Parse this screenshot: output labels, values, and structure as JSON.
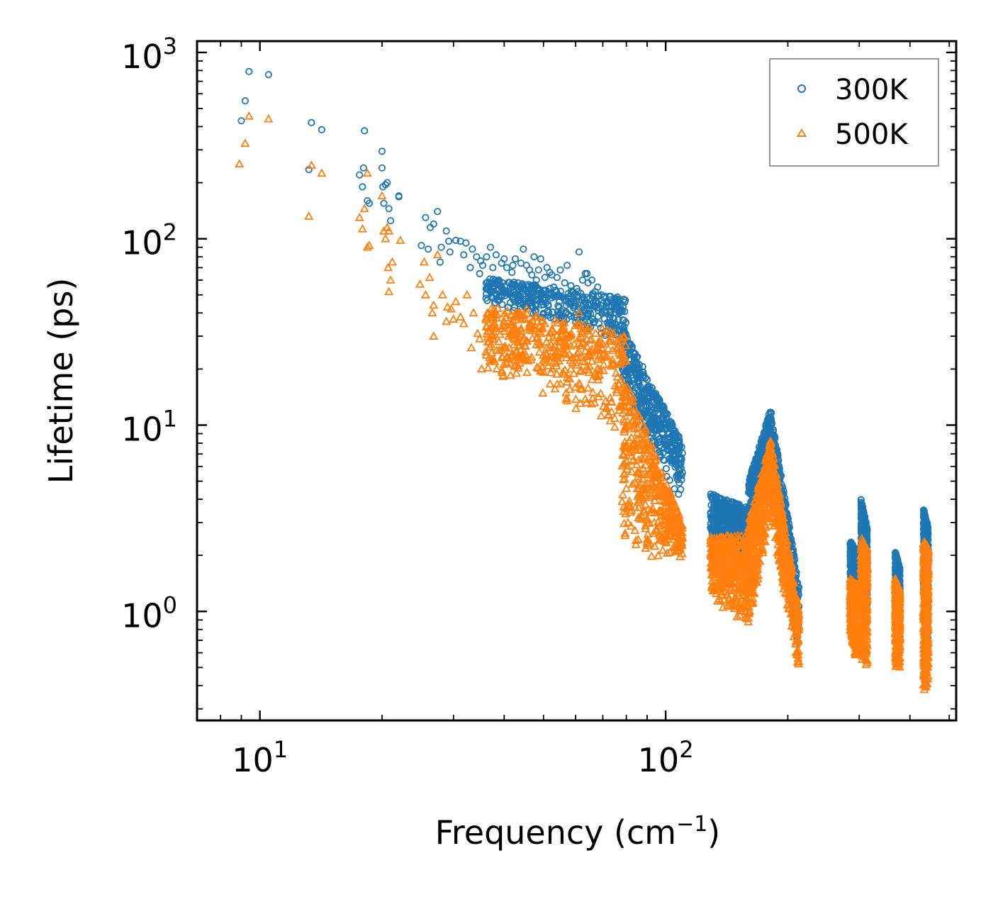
{
  "chart_data": {
    "type": "scatter",
    "title": "",
    "xlabel": "Frequency (cm",
    "xlabel_superscript": "−1",
    "xlabel_suffix": ")",
    "ylabel": "Lifetime (ps)",
    "xscale": "log",
    "yscale": "log",
    "xlim": [
      7,
      520
    ],
    "ylim": [
      0.26,
      1150
    ],
    "x_ticks": [
      {
        "value": 10,
        "base": "10",
        "exp": "1"
      },
      {
        "value": 100,
        "base": "10",
        "exp": "2"
      }
    ],
    "y_ticks": [
      {
        "value": 1,
        "base": "10",
        "exp": "0"
      },
      {
        "value": 10,
        "base": "10",
        "exp": "1"
      },
      {
        "value": 100,
        "base": "10",
        "exp": "2"
      },
      {
        "value": 1000,
        "base": "10",
        "exp": "3"
      }
    ],
    "grid": false,
    "legend_position": "top-right",
    "series": [
      {
        "name": "300K",
        "marker": "circle",
        "color": "#1f77b4",
        "points": [
          [
            9.0,
            430
          ],
          [
            9.2,
            550
          ],
          [
            9.4,
            790
          ],
          [
            10.5,
            760
          ],
          [
            13.2,
            235
          ],
          [
            13.4,
            420
          ],
          [
            14.2,
            385
          ],
          [
            17.6,
            220
          ],
          [
            17.9,
            190
          ],
          [
            18.0,
            240
          ],
          [
            18.1,
            380
          ],
          [
            18.4,
            160
          ],
          [
            18.6,
            155
          ],
          [
            20.0,
            295
          ],
          [
            20.0,
            240
          ],
          [
            20.1,
            190
          ],
          [
            20.2,
            155
          ],
          [
            20.4,
            195
          ],
          [
            20.6,
            200
          ],
          [
            20.8,
            145
          ],
          [
            21.0,
            125
          ],
          [
            22.0,
            170
          ],
          [
            22.0,
            168
          ],
          [
            25.0,
            92
          ],
          [
            25.6,
            130
          ],
          [
            26.0,
            88
          ],
          [
            26.3,
            115
          ],
          [
            26.8,
            120
          ],
          [
            27.4,
            140
          ],
          [
            27.8,
            75
          ],
          [
            28.8,
            110
          ],
          [
            29.4,
            85
          ],
          [
            30.4,
            98
          ],
          [
            31.2,
            97
          ],
          [
            32.2,
            95
          ],
          [
            33.4,
            88
          ],
          [
            34.2,
            80
          ],
          [
            35.4,
            72
          ],
          [
            36.2,
            80
          ],
          [
            37.5,
            70
          ],
          [
            38.8,
            60
          ],
          [
            40.0,
            78
          ],
          [
            41.8,
            66
          ],
          [
            43.2,
            58
          ],
          [
            44.6,
            88
          ],
          [
            46.2,
            68
          ],
          [
            48.0,
            60
          ],
          [
            49.2,
            78
          ],
          [
            51.0,
            70
          ],
          [
            53.0,
            55
          ],
          [
            55.0,
            68
          ],
          [
            57.2,
            72
          ],
          [
            59.0,
            52
          ],
          [
            61.2,
            85
          ],
          [
            63.4,
            65
          ],
          [
            65.8,
            60
          ],
          [
            68.0,
            55
          ],
          [
            70.2,
            45
          ],
          [
            73.0,
            47
          ],
          [
            29.2,
            97
          ],
          [
            31.8,
            82
          ],
          [
            34.8,
            65
          ],
          [
            37.0,
            90
          ],
          [
            39.4,
            74
          ],
          [
            42.6,
            78
          ],
          [
            45.4,
            72
          ],
          [
            47.4,
            80
          ],
          [
            50.4,
            62
          ],
          [
            54.0,
            62
          ],
          [
            56.4,
            58
          ],
          [
            60.4,
            54
          ],
          [
            62.4,
            60
          ],
          [
            64.4,
            58
          ],
          [
            67.0,
            52
          ],
          [
            69.4,
            50
          ],
          [
            72.0,
            46
          ],
          [
            35.0,
            76
          ],
          [
            40.6,
            70
          ],
          [
            44.0,
            74
          ],
          [
            48.6,
            68
          ],
          [
            52.4,
            64
          ],
          [
            58.4,
            56
          ],
          [
            64.0,
            65
          ],
          [
            28.0,
            90
          ],
          [
            33.0,
            70
          ],
          [
            38.2,
            82
          ],
          [
            42.0,
            72
          ],
          [
            46.8,
            64
          ],
          [
            51.8,
            66
          ]
        ],
        "bands": [
          {
            "x": [
              36,
              80
            ],
            "y_lo_start": 45,
            "y_hi_start": 62,
            "y_lo_end": 28,
            "y_hi_end": 48
          },
          {
            "x": [
              78,
              110
            ],
            "y_lo_start": 17,
            "y_hi_start": 34,
            "y_lo_end": 3.5,
            "y_hi_end": 8
          },
          {
            "x": [
              129,
              160
            ],
            "y_lo_start": 2.2,
            "y_hi_start": 4.3,
            "y_lo_end": 1.6,
            "y_hi_end": 3.6
          },
          {
            "x": [
              160,
              182
            ],
            "y_lo_start": 2.0,
            "y_hi_start": 5.0,
            "y_lo_end": 6.0,
            "y_hi_end": 12.5
          },
          {
            "x": [
              182,
              213
            ],
            "y_lo_start": 5.5,
            "y_hi_start": 11.5,
            "y_lo_end": 0.6,
            "y_hi_end": 1.4
          },
          {
            "x": [
              285,
              296
            ],
            "y_lo_start": 1.3,
            "y_hi_start": 2.4,
            "y_lo_end": 0.9,
            "y_hi_end": 2.1
          },
          {
            "x": [
              303,
              314
            ],
            "y_lo_start": 1.8,
            "y_hi_start": 4.0,
            "y_lo_end": 0.9,
            "y_hi_end": 2.8
          },
          {
            "x": [
              368,
              378
            ],
            "y_lo_start": 1.0,
            "y_hi_start": 2.1,
            "y_lo_end": 0.7,
            "y_hi_end": 1.7
          },
          {
            "x": [
              432,
              444
            ],
            "y_lo_start": 1.3,
            "y_hi_start": 3.6,
            "y_lo_end": 0.6,
            "y_hi_end": 2.8
          }
        ]
      },
      {
        "name": "500K",
        "marker": "triangle",
        "color": "#ff7f0e",
        "points": [
          [
            8.9,
            252
          ],
          [
            9.2,
            325
          ],
          [
            9.4,
            455
          ],
          [
            10.5,
            440
          ],
          [
            13.2,
            132
          ],
          [
            13.4,
            248
          ],
          [
            14.2,
            225
          ],
          [
            17.6,
            130
          ],
          [
            17.9,
            113
          ],
          [
            18.1,
            145
          ],
          [
            18.4,
            225
          ],
          [
            18.4,
            90
          ],
          [
            18.6,
            92
          ],
          [
            20.0,
            170
          ],
          [
            20.2,
            110
          ],
          [
            20.4,
            100
          ],
          [
            20.6,
            115
          ],
          [
            20.7,
            70
          ],
          [
            20.8,
            110
          ],
          [
            20.8,
            52
          ],
          [
            21.0,
            60
          ],
          [
            21.2,
            75
          ],
          [
            22.2,
            98
          ],
          [
            24.8,
            57
          ],
          [
            25.4,
            75
          ],
          [
            25.6,
            50
          ],
          [
            26.2,
            62
          ],
          [
            26.6,
            40
          ],
          [
            26.8,
            44
          ],
          [
            27.4,
            82
          ],
          [
            28.2,
            50
          ],
          [
            28.8,
            36
          ],
          [
            29.6,
            42
          ],
          [
            30.4,
            46
          ],
          [
            31.2,
            38
          ],
          [
            32.4,
            50
          ],
          [
            33.6,
            40
          ],
          [
            34.4,
            31
          ],
          [
            35.2,
            20
          ],
          [
            36.2,
            34
          ],
          [
            37.4,
            30
          ],
          [
            38.8,
            28
          ],
          [
            40.0,
            36
          ],
          [
            41.8,
            31
          ],
          [
            43.2,
            28
          ],
          [
            44.8,
            39
          ],
          [
            46.2,
            35
          ],
          [
            48.0,
            27
          ],
          [
            49.4,
            31
          ],
          [
            51.0,
            26
          ],
          [
            53.0,
            22
          ],
          [
            55.0,
            28
          ],
          [
            57.2,
            18
          ],
          [
            59.0,
            23
          ],
          [
            61.2,
            40
          ],
          [
            63.4,
            25
          ],
          [
            65.8,
            22
          ],
          [
            68.0,
            20
          ],
          [
            70.4,
            31
          ],
          [
            26.8,
            30
          ],
          [
            29.0,
            43
          ],
          [
            31.8,
            35
          ],
          [
            33.2,
            26
          ],
          [
            37.6,
            38
          ],
          [
            39.4,
            33
          ],
          [
            42.8,
            38
          ],
          [
            45.4,
            42
          ],
          [
            47.4,
            33
          ],
          [
            50.4,
            35
          ],
          [
            52.2,
            27
          ],
          [
            56.2,
            24
          ],
          [
            58.4,
            20
          ],
          [
            60.4,
            21
          ],
          [
            62.4,
            22
          ],
          [
            64.4,
            24
          ],
          [
            67.0,
            25
          ],
          [
            69.4,
            23
          ],
          [
            30.0,
            37
          ],
          [
            34.8,
            29
          ],
          [
            41.0,
            30
          ],
          [
            44.0,
            32
          ],
          [
            48.6,
            28
          ],
          [
            54.2,
            25
          ]
        ],
        "bands": [
          {
            "x": [
              36,
              80
            ],
            "y_lo_start": 20,
            "y_hi_start": 44,
            "y_lo_end": 9,
            "y_hi_end": 31
          },
          {
            "x": [
              78,
              110
            ],
            "y_lo_start": 2.0,
            "y_hi_start": 20,
            "y_lo_end": 1.9,
            "y_hi_end": 3.0
          },
          {
            "x": [
              129,
              160
            ],
            "y_lo_start": 1.2,
            "y_hi_start": 2.5,
            "y_lo_end": 0.8,
            "y_hi_end": 2.6
          },
          {
            "x": [
              160,
              182
            ],
            "y_lo_start": 0.8,
            "y_hi_start": 3.0,
            "y_lo_end": 3.5,
            "y_hi_end": 8.5
          },
          {
            "x": [
              182,
              213
            ],
            "y_lo_start": 3.0,
            "y_hi_start": 8.0,
            "y_lo_end": 0.48,
            "y_hi_end": 1.0
          },
          {
            "x": [
              285,
              296
            ],
            "y_lo_start": 0.8,
            "y_hi_start": 1.5,
            "y_lo_end": 0.5,
            "y_hi_end": 1.4
          },
          {
            "x": [
              303,
              314
            ],
            "y_lo_start": 0.55,
            "y_hi_start": 2.5,
            "y_lo_end": 0.5,
            "y_hi_end": 2.2
          },
          {
            "x": [
              368,
              378
            ],
            "y_lo_start": 0.5,
            "y_hi_start": 1.5,
            "y_lo_end": 0.5,
            "y_hi_end": 1.3
          },
          {
            "x": [
              432,
              444
            ],
            "y_lo_start": 0.35,
            "y_hi_start": 2.4,
            "y_lo_end": 0.4,
            "y_hi_end": 2.2
          }
        ]
      }
    ]
  }
}
